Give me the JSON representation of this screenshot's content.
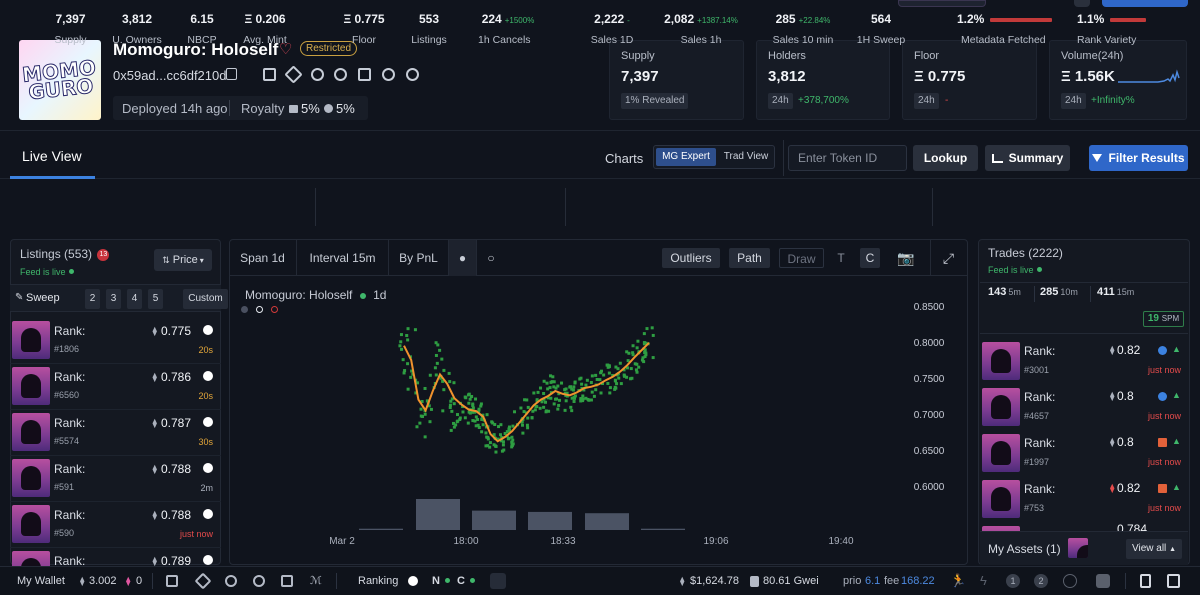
{
  "collection": {
    "name": "Momoguro: Holoself",
    "restricted": "Restricted",
    "address": "0x59ad...cc6df210d",
    "deployed": "Deployed 14h ago",
    "royalty_label": "Royalty",
    "royalty_1": "5%",
    "royalty_2": "5%",
    "logo_line1": "MOMO",
    "logo_line2": "GURO"
  },
  "stat_cards": [
    {
      "label": "Supply",
      "value": "7,397",
      "chip": "1% Revealed",
      "change": ""
    },
    {
      "label": "Holders",
      "value": "3,812",
      "chip": "24h",
      "change": "+378,700%"
    },
    {
      "label": "Floor",
      "value": "Ξ 0.775",
      "chip": "24h",
      "change": "-"
    },
    {
      "label": "Volume(24h)",
      "value": "Ξ 1.56K",
      "chip": "24h",
      "change": "+Infinity%"
    }
  ],
  "tabs": {
    "live_view": "Live View",
    "charts": "Charts",
    "mg_expert": "MG Expert",
    "trad_view": "Trad View"
  },
  "search": {
    "placeholder": "Enter Token ID",
    "lookup": "Lookup",
    "summary": "Summary",
    "filter": "Filter Results"
  },
  "metrics": [
    {
      "value": "7,397",
      "label": "Supply",
      "delta": ""
    },
    {
      "value": "3,812",
      "label": "U. Owners",
      "delta": ""
    },
    {
      "value": "6.15",
      "label": "NBCP",
      "delta": ""
    },
    {
      "value": "Ξ 0.206",
      "label": "Avg. Mint",
      "delta": ""
    },
    {
      "value": "Ξ 0.775",
      "label": "Floor",
      "delta": ""
    },
    {
      "value": "553",
      "label": "Listings",
      "delta": ""
    },
    {
      "value": "224",
      "label": "1h Cancels",
      "delta": "+1500%"
    },
    {
      "value": "2,222",
      "label": "Sales 1D",
      "delta": "-"
    },
    {
      "value": "2,082",
      "label": "Sales 1h",
      "delta": "+1387.14%"
    },
    {
      "value": "285",
      "label": "Sales 10 min",
      "delta": "+22.84%"
    },
    {
      "value": "564",
      "label": "1H Sweep",
      "delta": ""
    },
    {
      "value": "1.2%",
      "label": "Metadata Fetched",
      "delta": ""
    },
    {
      "value": "1.1%",
      "label": "Rank Variety",
      "delta": ""
    }
  ],
  "listings": {
    "title": "Listings (553)",
    "badge": "13",
    "feed": "Feed is live",
    "sort": "Price",
    "sweep": "Sweep",
    "sweep_counts": [
      "2",
      "3",
      "4",
      "5"
    ],
    "custom": "Custom",
    "rows": [
      {
        "rank_label": "Rank:",
        "token": "#1806",
        "price": "0.775",
        "time": "20s",
        "time_color": "#e3a63a"
      },
      {
        "rank_label": "Rank:",
        "token": "#6560",
        "price": "0.786",
        "time": "20s",
        "time_color": "#e3a63a"
      },
      {
        "rank_label": "Rank:",
        "token": "#5574",
        "price": "0.787",
        "time": "30s",
        "time_color": "#e3a63a"
      },
      {
        "rank_label": "Rank:",
        "token": "#591",
        "price": "0.788",
        "time": "2m",
        "time_color": "#aab0bc"
      },
      {
        "rank_label": "Rank:",
        "token": "#590",
        "price": "0.788",
        "time": "just now",
        "time_color": "#e34b4b"
      },
      {
        "rank_label": "Rank:",
        "token": "",
        "price": "0.789",
        "time": "",
        "time_color": "#aab0bc"
      }
    ]
  },
  "chart_toolbar": {
    "span": "Span 1d",
    "interval": "Interval 15m",
    "bypnl": "By PnL",
    "outliers": "Outliers",
    "path": "Path",
    "draw": "Draw",
    "t": "T",
    "c": "C"
  },
  "chart_data": {
    "type": "scatter",
    "title": "Momoguro: Holoself",
    "timeframe": "1d",
    "x_ticks": [
      "Mar 2",
      "18:00",
      "18:33",
      "19:06",
      "19:40"
    ],
    "y_ticks": [
      "0.8500",
      "0.8000",
      "0.7500",
      "0.7000",
      "0.6500",
      "0.6000"
    ],
    "ylim": [
      0.59,
      0.86
    ],
    "path": {
      "t": [
        0,
        1.5,
        3,
        4.5,
        6,
        7.5,
        9,
        10.5,
        12,
        13.5,
        15,
        16.5,
        18,
        19.5,
        21,
        22.5,
        24,
        25.5,
        27,
        28.5,
        30,
        31.5,
        33,
        34.5,
        36,
        37.5,
        39,
        40.5,
        42,
        43.5,
        45,
        46.5,
        48,
        49.5,
        51
      ],
      "y": [
        0.795,
        0.775,
        0.72,
        0.705,
        0.732,
        0.755,
        0.742,
        0.722,
        0.713,
        0.706,
        0.704,
        0.696,
        0.672,
        0.662,
        0.668,
        0.676,
        0.688,
        0.7,
        0.712,
        0.72,
        0.725,
        0.732,
        0.728,
        0.726,
        0.73,
        0.736,
        0.738,
        0.741,
        0.747,
        0.752,
        0.759,
        0.768,
        0.779,
        0.789,
        0.799
      ]
    },
    "volume_bars": [
      {
        "time": "17:30",
        "value": 1
      },
      {
        "time": "17:45",
        "value": 24
      },
      {
        "time": "18:00",
        "value": 15
      },
      {
        "time": "18:15",
        "value": 14
      },
      {
        "time": "18:30",
        "value": 13
      },
      {
        "time": "18:45",
        "value": 1
      }
    ],
    "legend_colors": [
      "#4a5060",
      "#e6e9ef",
      "#d13a3a"
    ],
    "point_color": "#2e9e42",
    "path_color": "#f0922d"
  },
  "trades": {
    "title": "Trades (2222)",
    "feed": "Feed is live",
    "counts": [
      {
        "n": "143",
        "w": "5m"
      },
      {
        "n": "285",
        "w": "10m"
      },
      {
        "n": "411",
        "w": "15m"
      }
    ],
    "spm": "19",
    "spm_label": "SPM",
    "rows": [
      {
        "rank_label": "Rank:",
        "token": "#3001",
        "price": "0.82",
        "time": "just now"
      },
      {
        "rank_label": "Rank:",
        "token": "#4657",
        "price": "0.8",
        "time": "just now"
      },
      {
        "rank_label": "Rank:",
        "token": "#1997",
        "price": "0.8",
        "time": "just now"
      },
      {
        "rank_label": "Rank:",
        "token": "#753",
        "price": "0.82",
        "time": "just now"
      }
    ],
    "partial_price": "0.784"
  },
  "my_assets": {
    "label": "My Assets (1)",
    "view_all": "View all"
  },
  "bottom": {
    "wallet": "My Wallet",
    "eth": "3.002",
    "other": "0",
    "ranking": "Ranking",
    "n": "N",
    "c": "C",
    "eth_price": "$1,624.78",
    "gwei": "80.61 Gwei",
    "prio_label": "prio",
    "prio": "6.1",
    "fee_label": "fee",
    "fee": "168.22",
    "one": "1",
    "two": "2"
  },
  "colors": {
    "accent": "#3c82e0",
    "green": "#3fb76b",
    "red": "#e34b4b",
    "mg_expert": "#2e4f8c"
  }
}
